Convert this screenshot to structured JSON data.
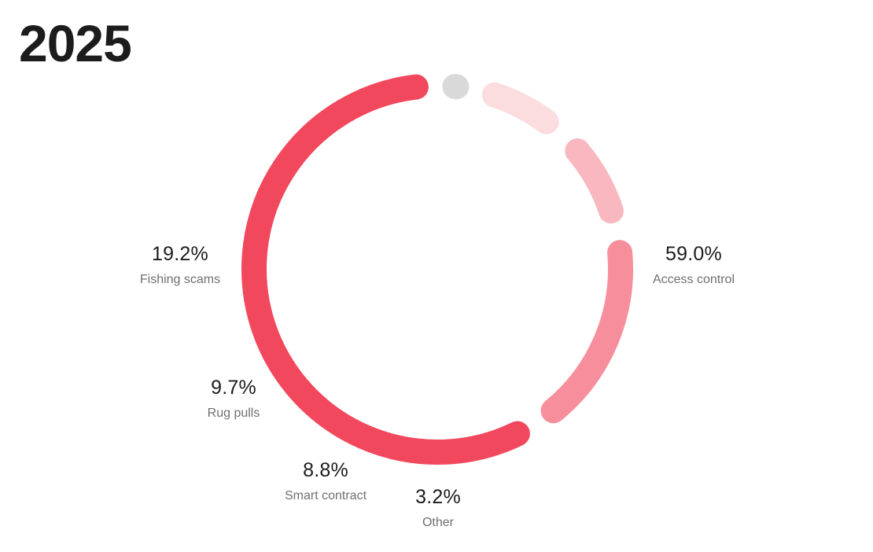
{
  "chart_data": {
    "type": "pie",
    "title": "2025",
    "donut": true,
    "slices": [
      {
        "label": "Access control",
        "value": 59.0,
        "display": "59.0%",
        "color": "#f2485d"
      },
      {
        "label": "Fishing scams",
        "value": 19.2,
        "display": "19.2%",
        "color": "#f68f9b"
      },
      {
        "label": "Rug pulls",
        "value": 9.7,
        "display": "9.7%",
        "color": "#f9b7bf"
      },
      {
        "label": "Smart contract",
        "value": 8.8,
        "display": "8.8%",
        "color": "#fbdde0"
      },
      {
        "label": "Other",
        "value": 3.2,
        "display": "3.2%",
        "color": "#d9d9d9"
      }
    ]
  }
}
